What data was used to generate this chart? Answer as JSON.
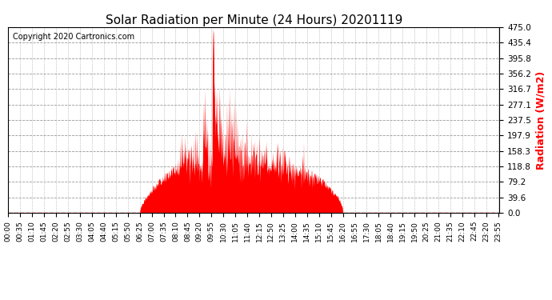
{
  "title": "Solar Radiation per Minute (24 Hours) 20201119",
  "copyright_text": "Copyright 2020 Cartronics.com",
  "ylabel": "Radiation (W/m2)",
  "ylabel_color": "#ff0000",
  "title_color": "#000000",
  "background_color": "#ffffff",
  "plot_background": "#ffffff",
  "fill_color": "#ff0000",
  "line_color": "#ff0000",
  "baseline_color": "#ff0000",
  "grid_color": "#999999",
  "ylim": [
    0.0,
    475.0
  ],
  "yticks": [
    0.0,
    39.6,
    79.2,
    118.8,
    158.3,
    197.9,
    237.5,
    277.1,
    316.7,
    356.2,
    395.8,
    435.4,
    475.0
  ],
  "total_minutes": 1440,
  "xtick_labels": [
    "00:00",
    "00:35",
    "01:10",
    "01:45",
    "02:20",
    "02:55",
    "03:30",
    "04:05",
    "04:40",
    "05:15",
    "05:50",
    "06:25",
    "07:00",
    "07:35",
    "08:10",
    "08:45",
    "09:20",
    "09:55",
    "10:30",
    "11:05",
    "11:40",
    "12:15",
    "12:50",
    "13:25",
    "14:00",
    "14:35",
    "15:10",
    "15:45",
    "16:20",
    "16:55",
    "17:30",
    "18:05",
    "18:40",
    "19:15",
    "19:50",
    "20:25",
    "21:00",
    "21:35",
    "22:10",
    "22:45",
    "23:20",
    "23:55"
  ]
}
